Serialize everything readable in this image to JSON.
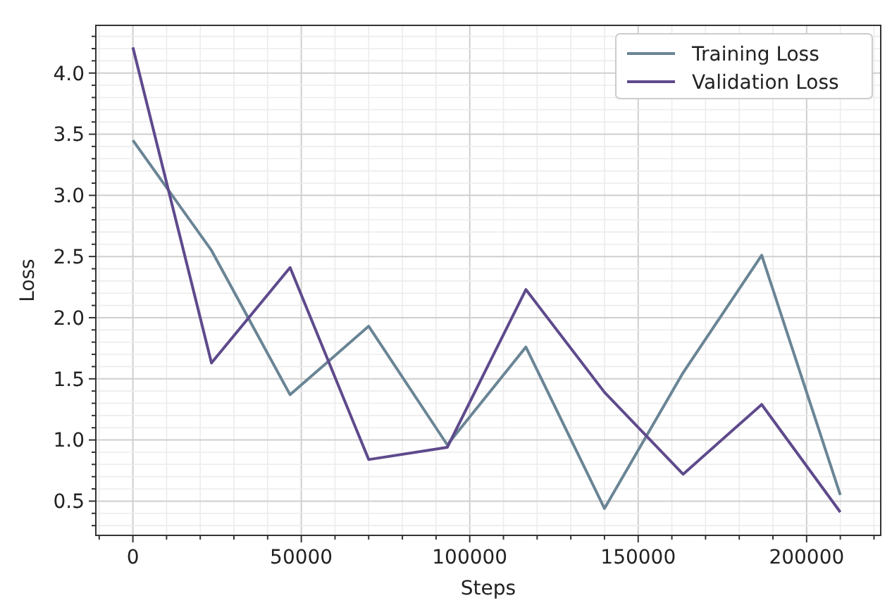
{
  "chart_data": {
    "type": "line",
    "xlabel": "Steps",
    "ylabel": "Loss",
    "x": [
      0,
      23333,
      46667,
      70000,
      93333,
      116667,
      140000,
      163333,
      186667,
      210000
    ],
    "series": [
      {
        "name": "Training Loss",
        "color": "#6a8595",
        "values": [
          3.45,
          2.55,
          1.37,
          1.93,
          0.96,
          1.76,
          0.44,
          1.55,
          2.51,
          0.55
        ]
      },
      {
        "name": "Validation Loss",
        "color": "#5e4a8c",
        "values": [
          4.21,
          1.63,
          2.41,
          0.84,
          0.94,
          2.23,
          1.39,
          0.72,
          1.29,
          0.41
        ]
      }
    ],
    "xlim": [
      -11000,
      222000
    ],
    "ylim": [
      0.22,
      4.39
    ],
    "xticks": [
      {
        "value": -10000,
        "label": null
      },
      0,
      {
        "value": 10000,
        "label": null
      },
      {
        "value": 20000,
        "label": null
      },
      {
        "value": 30000,
        "label": null
      },
      {
        "value": 40000,
        "label": null
      },
      50000,
      {
        "value": 60000,
        "label": null
      },
      {
        "value": 70000,
        "label": null
      },
      {
        "value": 80000,
        "label": null
      },
      {
        "value": 90000,
        "label": null
      },
      100000,
      {
        "value": 110000,
        "label": null
      },
      {
        "value": 120000,
        "label": null
      },
      {
        "value": 130000,
        "label": null
      },
      {
        "value": 140000,
        "label": null
      },
      150000,
      {
        "value": 160000,
        "label": null
      },
      {
        "value": 170000,
        "label": null
      },
      {
        "value": 180000,
        "label": null
      },
      {
        "value": 190000,
        "label": null
      },
      200000,
      {
        "value": 210000,
        "label": null
      },
      {
        "value": 220000,
        "label": null
      }
    ],
    "yticks": [
      {
        "value": 0.3,
        "label": null
      },
      {
        "value": 0.4,
        "label": null
      },
      0.5,
      {
        "value": 0.6,
        "label": null
      },
      {
        "value": 0.7,
        "label": null
      },
      {
        "value": 0.8,
        "label": null
      },
      {
        "value": 0.9,
        "label": null
      },
      {
        "value": 1.0,
        "label": "1.0"
      },
      {
        "value": 1.1,
        "label": null
      },
      {
        "value": 1.2,
        "label": null
      },
      {
        "value": 1.3,
        "label": null
      },
      {
        "value": 1.4,
        "label": null
      },
      1.5,
      {
        "value": 1.6,
        "label": null
      },
      {
        "value": 1.7,
        "label": null
      },
      {
        "value": 1.8,
        "label": null
      },
      {
        "value": 1.9,
        "label": null
      },
      {
        "value": 2.0,
        "label": "2.0"
      },
      {
        "value": 2.1,
        "label": null
      },
      {
        "value": 2.2,
        "label": null
      },
      {
        "value": 2.3,
        "label": null
      },
      {
        "value": 2.4,
        "label": null
      },
      2.5,
      {
        "value": 2.6,
        "label": null
      },
      {
        "value": 2.7,
        "label": null
      },
      {
        "value": 2.8,
        "label": null
      },
      {
        "value": 2.9,
        "label": null
      },
      {
        "value": 3.0,
        "label": "3.0"
      },
      {
        "value": 3.1,
        "label": null
      },
      {
        "value": 3.2,
        "label": null
      },
      {
        "value": 3.3,
        "label": null
      },
      {
        "value": 3.4,
        "label": null
      },
      3.5,
      {
        "value": 3.6,
        "label": null
      },
      {
        "value": 3.7,
        "label": null
      },
      {
        "value": 3.8,
        "label": null
      },
      {
        "value": 3.9,
        "label": null
      },
      {
        "value": 4.0,
        "label": "4.0"
      },
      {
        "value": 4.1,
        "label": null
      },
      {
        "value": 4.2,
        "label": null
      },
      {
        "value": 4.3,
        "label": null
      }
    ],
    "grid": true,
    "legend": "top right",
    "marker": "none",
    "line_style": "solid"
  }
}
